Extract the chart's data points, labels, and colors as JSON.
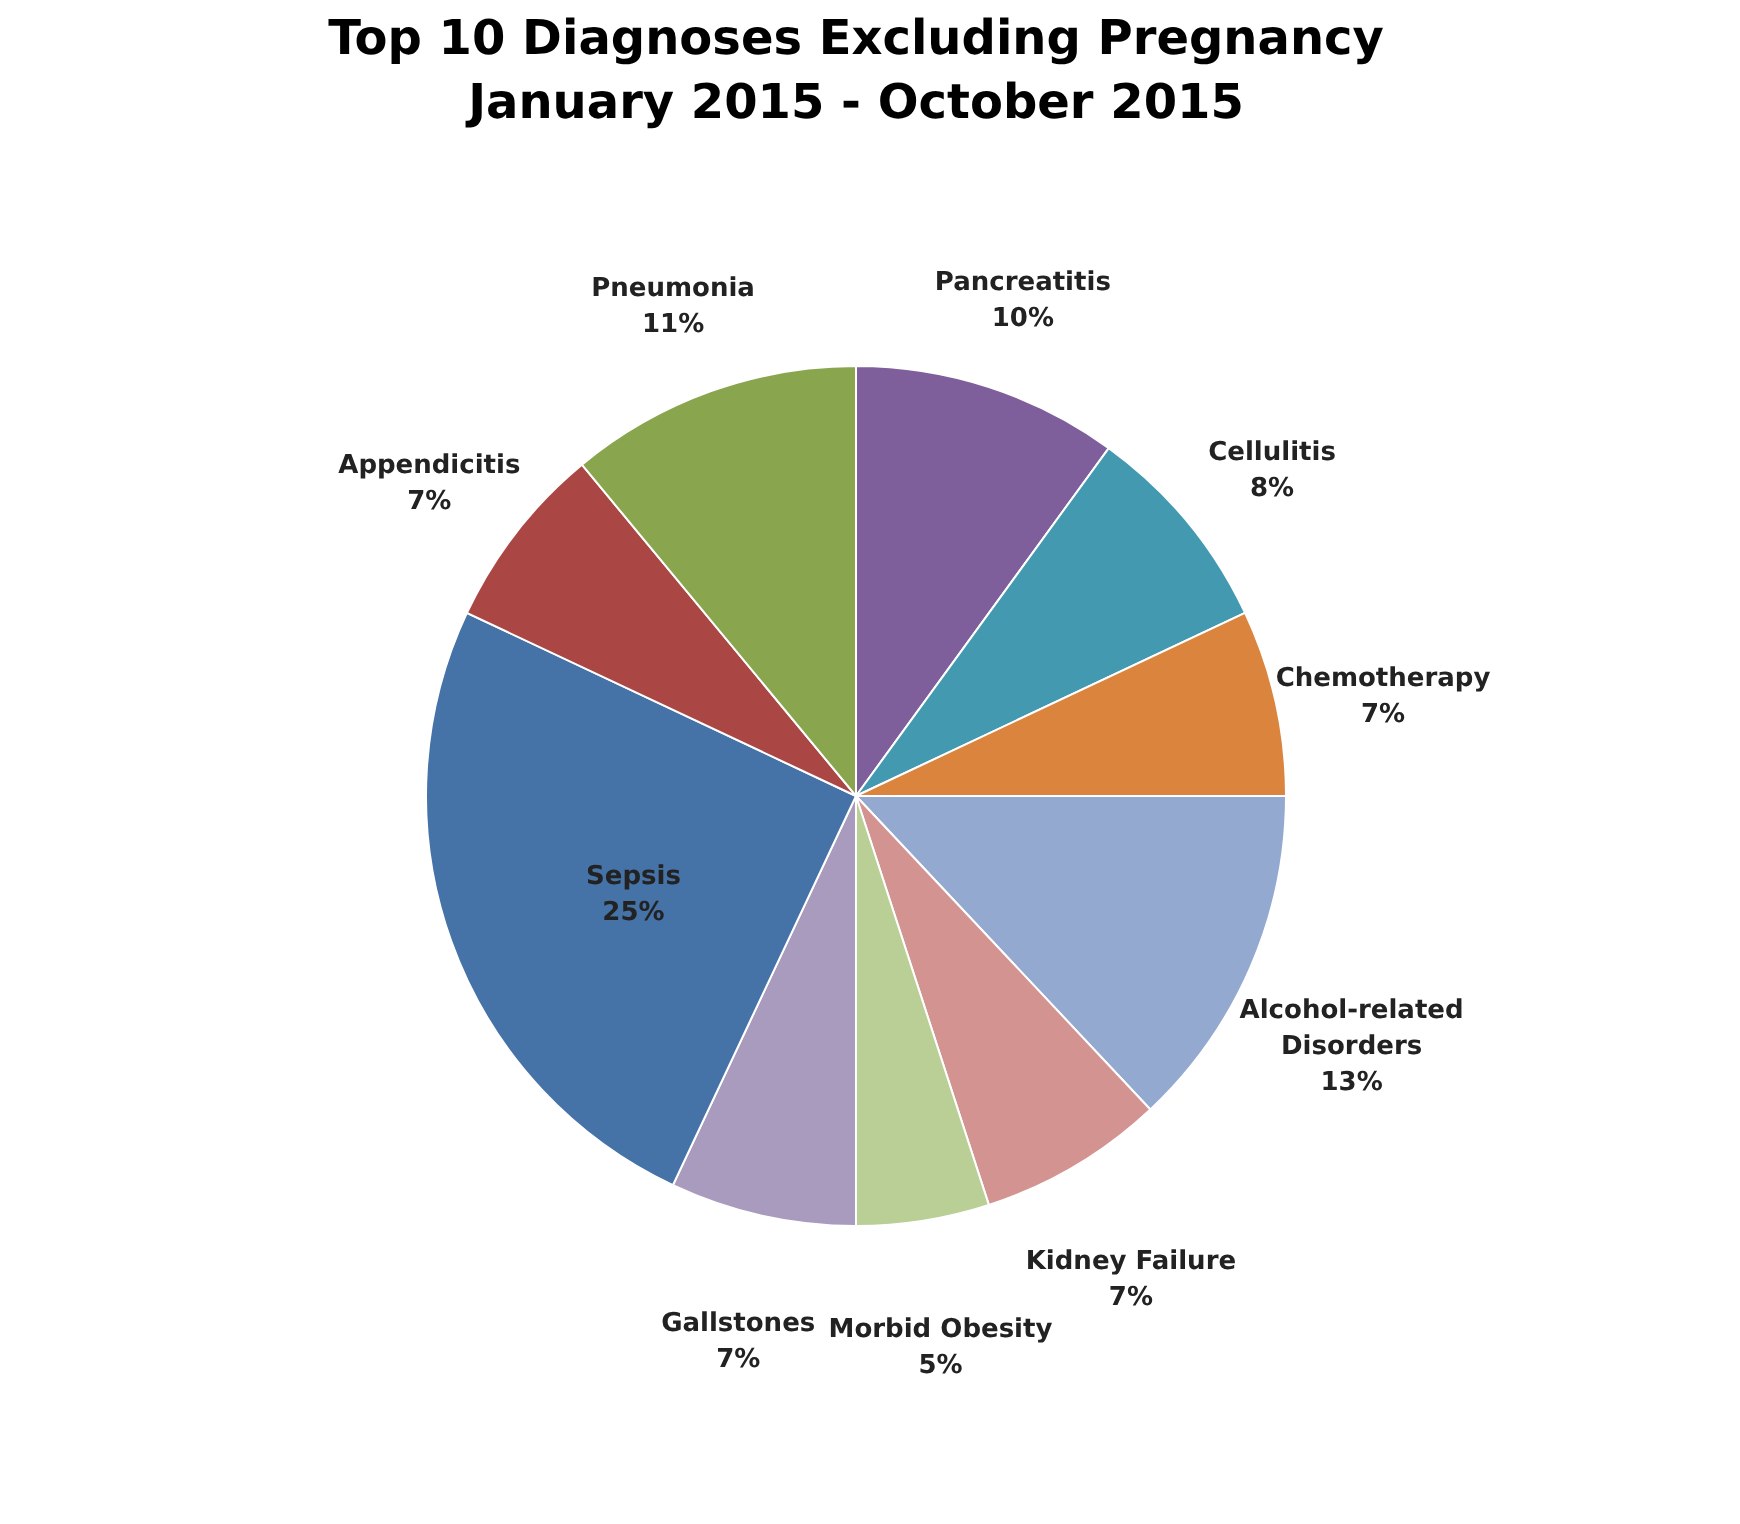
{
  "chart_data": {
    "type": "pie",
    "title": "Top 10 Diagnoses Excluding Pregnancy\nJanuary 2015 - October 2015",
    "categories": [
      "Pancreatitis",
      "Cellulitis",
      "Chemotherapy",
      "Alcohol-related\nDisorders",
      "Kidney Failure",
      "Morbid Obesity",
      "Gallstones",
      "Sepsis",
      "Appendicitis",
      "Pneumonia"
    ],
    "values": [
      10,
      8,
      7,
      13,
      7,
      5,
      7,
      25,
      7,
      11
    ],
    "value_labels": [
      "10%",
      "8%",
      "7%",
      "13%",
      "7%",
      "5%",
      "7%",
      "25%",
      "7%",
      "11%"
    ],
    "colors": [
      "#7e5f9c",
      "#4299b0",
      "#db843d",
      "#94a9d0",
      "#d39391",
      "#b9cf96",
      "#a99bbd",
      "#4572a7",
      "#aa4643",
      "#89a54e"
    ],
    "legend": false
  }
}
